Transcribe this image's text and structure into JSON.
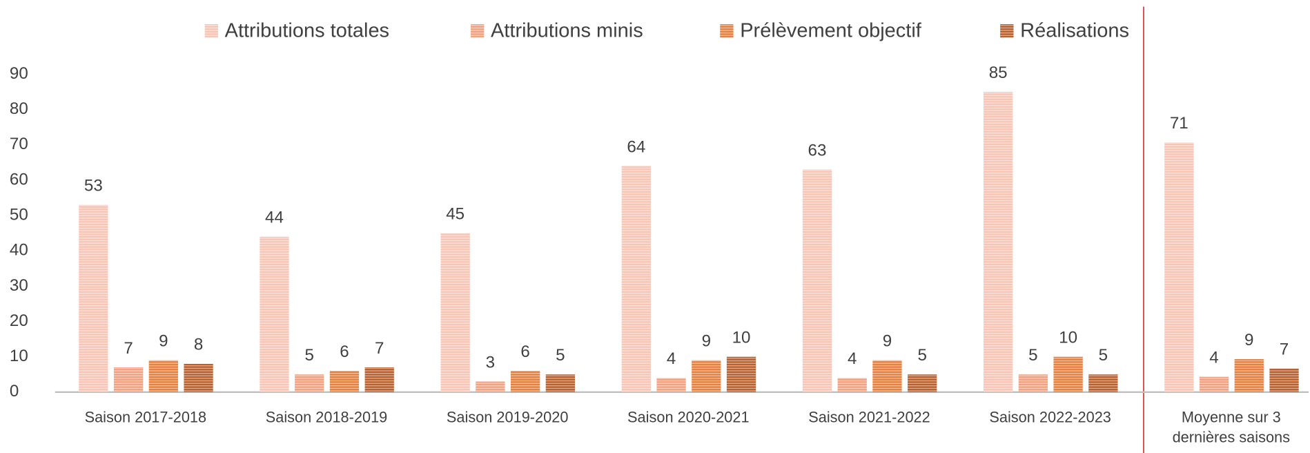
{
  "chart_data": {
    "type": "bar",
    "categories": [
      "Saison 2017-2018",
      "Saison 2018-2019",
      "Saison 2019-2020",
      "Saison 2020-2021",
      "Saison 2021-2022",
      "Saison 2022-2023",
      "Moyenne sur 3 dernières saisons"
    ],
    "series": [
      {
        "name": "Attributions totales",
        "color": "#f8c4b4",
        "values": [
          53,
          44,
          45,
          64,
          63,
          85,
          70.67
        ],
        "value_labels": [
          "53",
          "44",
          "45",
          "64",
          "63",
          "85",
          "71"
        ]
      },
      {
        "name": "Attributions minis",
        "color": "#f2a07e",
        "values": [
          7,
          5,
          3,
          4,
          4,
          5,
          4.33
        ],
        "value_labels": [
          "7",
          "5",
          "3",
          "4",
          "4",
          "5",
          "4"
        ]
      },
      {
        "name": "Prélèvement objectif",
        "color": "#e67e3c",
        "values": [
          9,
          6,
          6,
          9,
          9,
          10,
          9.33
        ],
        "value_labels": [
          "9",
          "6",
          "6",
          "9",
          "9",
          "10",
          "9"
        ]
      },
      {
        "name": "Réalisations",
        "color": "#b85e2a",
        "values": [
          8,
          7,
          5,
          10,
          5,
          5,
          6.67
        ],
        "value_labels": [
          "8",
          "7",
          "5",
          "10",
          "5",
          "5",
          "7"
        ]
      }
    ],
    "ylim": [
      0,
      90
    ],
    "yticks": [
      0,
      10,
      20,
      30,
      40,
      50,
      60,
      70,
      80,
      90
    ],
    "grid": false,
    "legend": "top"
  }
}
